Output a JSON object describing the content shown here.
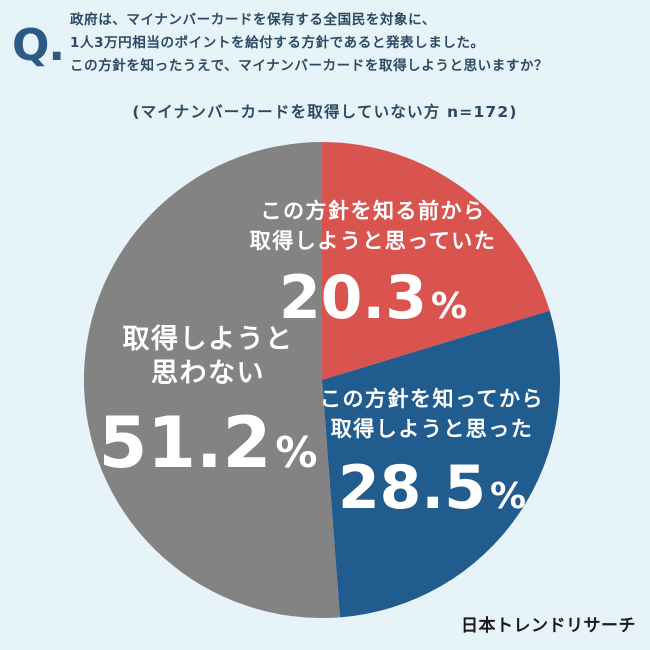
{
  "question": {
    "mark": "Q.",
    "lines": [
      "政府は、マイナンバーカードを保有する全国民を対象に、",
      "1人3万円相当のポイントを給付する方針であると発表しました。",
      "この方針を知ったうえで、マイナンバーカードを取得しようと思いますか？"
    ]
  },
  "subtitle": "(マイナンバーカードを取得していない方 n=172)",
  "brand": "日本トレンドリサーチ",
  "colors": {
    "background": "#e6f4fa",
    "slice_red": "#d9544f",
    "slice_blue": "#215c8e",
    "slice_gray": "#838383"
  },
  "chart_data": {
    "type": "pie",
    "title": "(マイナンバーカードを取得していない方 n=172)",
    "start": "12 o'clock",
    "direction": "clockwise",
    "slices": [
      {
        "label_lines": [
          "この方針を知る前から",
          "取得しようと思っていた"
        ],
        "value": 20.3,
        "display": "20.3",
        "color": "#d9544f"
      },
      {
        "label_lines": [
          "この方針を知ってから",
          "取得しようと思った"
        ],
        "value": 28.5,
        "display": "28.5",
        "color": "#215c8e"
      },
      {
        "label_lines": [
          "取得しようと",
          "思わない"
        ],
        "value": 51.2,
        "display": "51.2",
        "color": "#838383"
      }
    ],
    "unit": "%"
  }
}
